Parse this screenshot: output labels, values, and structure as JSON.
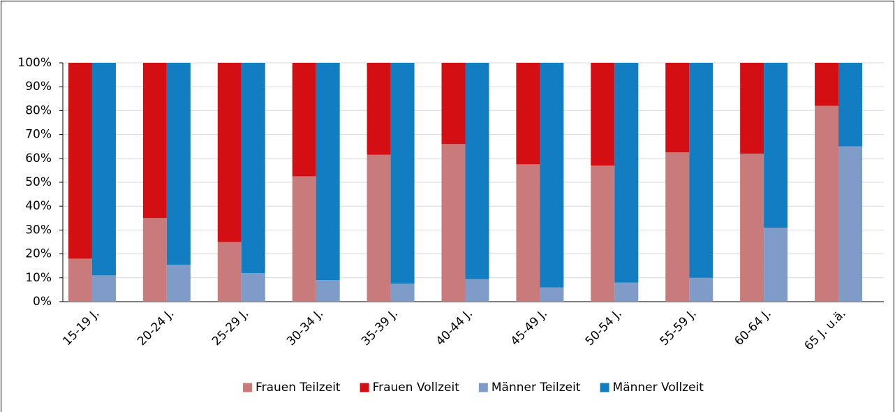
{
  "chart_data": {
    "type": "stacked_bar",
    "categories": [
      "15-19 J.",
      "20-24 J.",
      "25-29 J.",
      "30-34 J.",
      "35-39 J.",
      "40-44 J.",
      "45-49 J.",
      "50-54 J.",
      "55-59 J.",
      "60-64 J.",
      "65 J. u.ä."
    ],
    "series": [
      {
        "name": "Frauen Teilzeit",
        "color": "#c97b7b",
        "stack": 0,
        "values": [
          18,
          35,
          25,
          52.5,
          61.5,
          66,
          57.5,
          57,
          62.5,
          62,
          82
        ]
      },
      {
        "name": "Frauen Vollzeit",
        "color": "#d40f14",
        "stack": 0,
        "values": [
          82,
          65,
          75,
          47.5,
          38.5,
          34,
          42.5,
          43,
          37.5,
          38,
          18
        ]
      },
      {
        "name": "Männer Teilzeit",
        "color": "#7f9cc9",
        "stack": 1,
        "values": [
          11,
          15.5,
          12,
          9,
          7.5,
          9.5,
          6,
          8,
          10,
          31,
          65
        ]
      },
      {
        "name": "Männer Vollzeit",
        "color": "#127dc0",
        "stack": 1,
        "values": [
          89,
          84.5,
          88,
          91,
          92.5,
          90.5,
          94,
          92,
          90,
          69,
          35
        ]
      }
    ],
    "ylim": [
      0,
      100
    ],
    "yticks": [
      {
        "value": 0,
        "label": "0%"
      },
      {
        "value": 10,
        "label": "10%"
      },
      {
        "value": 20,
        "label": "20%"
      },
      {
        "value": 30,
        "label": "30%"
      },
      {
        "value": 40,
        "label": "40%"
      },
      {
        "value": 50,
        "label": "50%"
      },
      {
        "value": 60,
        "label": "60%"
      },
      {
        "value": 70,
        "label": "70%"
      },
      {
        "value": 80,
        "label": "80%"
      },
      {
        "value": 90,
        "label": "90%"
      },
      {
        "value": 100,
        "label": "100%"
      }
    ],
    "grid": true,
    "legend": "bottom"
  }
}
